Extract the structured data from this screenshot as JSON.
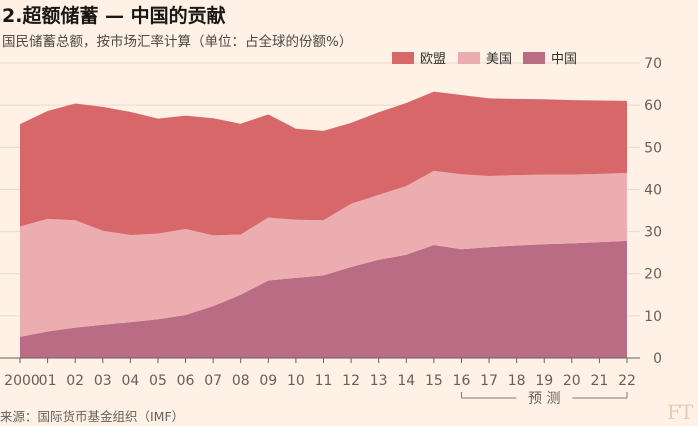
{
  "header": {
    "title": "2.超额储蓄 — 中国的贡献",
    "subtitle": "国民储蓄总额，按市场汇率计算（单位：占全球的份额%）"
  },
  "footer": {
    "source": "来源：国际货币基金组织（IMF）",
    "logo": "FT"
  },
  "colors": {
    "background": "#fff1e5",
    "europe": "#d8676a",
    "us": "#ecadb0",
    "china": "#b96c84",
    "gridline": "#e6d9ce",
    "baseline": "#66605c"
  },
  "chart_data": {
    "type": "area",
    "stacked": true,
    "title": "2.超额储蓄 — 中国的贡献",
    "ylabel": "占全球的份额%",
    "ylim": [
      0,
      70
    ],
    "yticks": [
      0,
      10,
      20,
      30,
      40,
      50,
      60,
      70
    ],
    "x": [
      2000,
      2001,
      2002,
      2003,
      2004,
      2005,
      2006,
      2007,
      2008,
      2009,
      2010,
      2011,
      2012,
      2013,
      2014,
      2015,
      2016,
      2017,
      2018,
      2019,
      2020,
      2021,
      2022
    ],
    "xtick_labels": [
      "2000",
      "01",
      "02",
      "03",
      "04",
      "05",
      "06",
      "07",
      "08",
      "09",
      "10",
      "11",
      "12",
      "13",
      "14",
      "15",
      "16",
      "17",
      "18",
      "19",
      "20",
      "21",
      "22"
    ],
    "legend": [
      "欧盟",
      "美国",
      "中国"
    ],
    "legend_position": "top-right",
    "series": [
      {
        "name": "中国",
        "values": [
          5,
          6.3,
          7.2,
          7.9,
          8.5,
          9.2,
          10.2,
          12.3,
          15,
          18.4,
          19,
          19.6,
          21.6,
          23.3,
          24.5,
          26.8,
          25.8,
          26.3,
          26.7,
          27,
          27.2,
          27.5,
          27.8
        ]
      },
      {
        "name": "美国",
        "values": [
          26.2,
          26.7,
          25.5,
          22.3,
          20.7,
          20.3,
          20.4,
          16.8,
          14.3,
          14.9,
          13.8,
          13.1,
          15,
          15.4,
          16.3,
          17.6,
          17.8,
          16.9,
          16.7,
          16.5,
          16.3,
          16.2,
          16.1
        ]
      },
      {
        "name": "欧盟",
        "values": [
          24.3,
          25.6,
          27.7,
          29.4,
          29.2,
          27.3,
          26.9,
          27.8,
          26.3,
          24.5,
          21.6,
          21.2,
          19.2,
          19.6,
          19.7,
          18.8,
          18.8,
          18.4,
          18.1,
          17.9,
          17.7,
          17.4,
          17.1
        ]
      }
    ],
    "annotations": [
      {
        "text": "预 测",
        "from": 2016,
        "to": 2022
      }
    ]
  }
}
